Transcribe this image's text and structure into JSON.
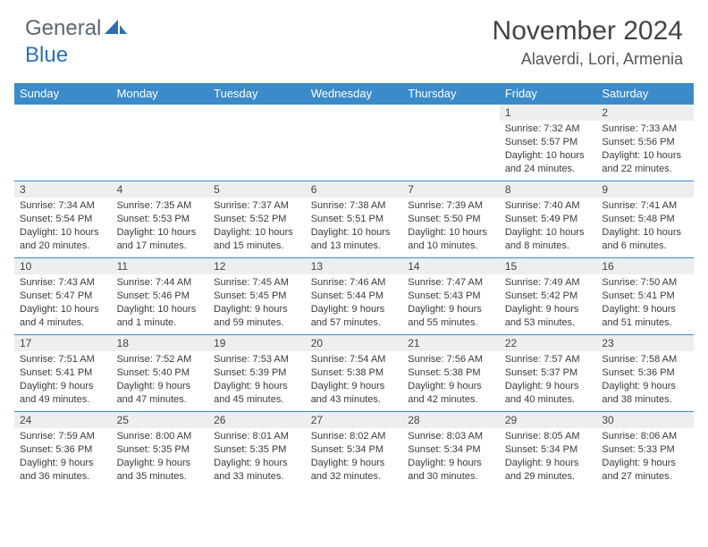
{
  "brand": {
    "part1": "General",
    "part2": "Blue"
  },
  "title": "November 2024",
  "location": "Alaverdi, Lori, Armenia",
  "columns": [
    "Sunday",
    "Monday",
    "Tuesday",
    "Wednesday",
    "Thursday",
    "Friday",
    "Saturday"
  ],
  "colors": {
    "header_bg": "#3b8bca",
    "header_text": "#ffffff",
    "daynum_bg": "#eceeef",
    "border": "#3b8bca",
    "body_text": "#3a3a3a",
    "logo_gray": "#5b6770",
    "logo_blue": "#2a6fb5"
  },
  "weeks": [
    [
      null,
      null,
      null,
      null,
      null,
      {
        "num": "1",
        "sunrise": "Sunrise: 7:32 AM",
        "sunset": "Sunset: 5:57 PM",
        "daylight": "Daylight: 10 hours and 24 minutes."
      },
      {
        "num": "2",
        "sunrise": "Sunrise: 7:33 AM",
        "sunset": "Sunset: 5:56 PM",
        "daylight": "Daylight: 10 hours and 22 minutes."
      }
    ],
    [
      {
        "num": "3",
        "sunrise": "Sunrise: 7:34 AM",
        "sunset": "Sunset: 5:54 PM",
        "daylight": "Daylight: 10 hours and 20 minutes."
      },
      {
        "num": "4",
        "sunrise": "Sunrise: 7:35 AM",
        "sunset": "Sunset: 5:53 PM",
        "daylight": "Daylight: 10 hours and 17 minutes."
      },
      {
        "num": "5",
        "sunrise": "Sunrise: 7:37 AM",
        "sunset": "Sunset: 5:52 PM",
        "daylight": "Daylight: 10 hours and 15 minutes."
      },
      {
        "num": "6",
        "sunrise": "Sunrise: 7:38 AM",
        "sunset": "Sunset: 5:51 PM",
        "daylight": "Daylight: 10 hours and 13 minutes."
      },
      {
        "num": "7",
        "sunrise": "Sunrise: 7:39 AM",
        "sunset": "Sunset: 5:50 PM",
        "daylight": "Daylight: 10 hours and 10 minutes."
      },
      {
        "num": "8",
        "sunrise": "Sunrise: 7:40 AM",
        "sunset": "Sunset: 5:49 PM",
        "daylight": "Daylight: 10 hours and 8 minutes."
      },
      {
        "num": "9",
        "sunrise": "Sunrise: 7:41 AM",
        "sunset": "Sunset: 5:48 PM",
        "daylight": "Daylight: 10 hours and 6 minutes."
      }
    ],
    [
      {
        "num": "10",
        "sunrise": "Sunrise: 7:43 AM",
        "sunset": "Sunset: 5:47 PM",
        "daylight": "Daylight: 10 hours and 4 minutes."
      },
      {
        "num": "11",
        "sunrise": "Sunrise: 7:44 AM",
        "sunset": "Sunset: 5:46 PM",
        "daylight": "Daylight: 10 hours and 1 minute."
      },
      {
        "num": "12",
        "sunrise": "Sunrise: 7:45 AM",
        "sunset": "Sunset: 5:45 PM",
        "daylight": "Daylight: 9 hours and 59 minutes."
      },
      {
        "num": "13",
        "sunrise": "Sunrise: 7:46 AM",
        "sunset": "Sunset: 5:44 PM",
        "daylight": "Daylight: 9 hours and 57 minutes."
      },
      {
        "num": "14",
        "sunrise": "Sunrise: 7:47 AM",
        "sunset": "Sunset: 5:43 PM",
        "daylight": "Daylight: 9 hours and 55 minutes."
      },
      {
        "num": "15",
        "sunrise": "Sunrise: 7:49 AM",
        "sunset": "Sunset: 5:42 PM",
        "daylight": "Daylight: 9 hours and 53 minutes."
      },
      {
        "num": "16",
        "sunrise": "Sunrise: 7:50 AM",
        "sunset": "Sunset: 5:41 PM",
        "daylight": "Daylight: 9 hours and 51 minutes."
      }
    ],
    [
      {
        "num": "17",
        "sunrise": "Sunrise: 7:51 AM",
        "sunset": "Sunset: 5:41 PM",
        "daylight": "Daylight: 9 hours and 49 minutes."
      },
      {
        "num": "18",
        "sunrise": "Sunrise: 7:52 AM",
        "sunset": "Sunset: 5:40 PM",
        "daylight": "Daylight: 9 hours and 47 minutes."
      },
      {
        "num": "19",
        "sunrise": "Sunrise: 7:53 AM",
        "sunset": "Sunset: 5:39 PM",
        "daylight": "Daylight: 9 hours and 45 minutes."
      },
      {
        "num": "20",
        "sunrise": "Sunrise: 7:54 AM",
        "sunset": "Sunset: 5:38 PM",
        "daylight": "Daylight: 9 hours and 43 minutes."
      },
      {
        "num": "21",
        "sunrise": "Sunrise: 7:56 AM",
        "sunset": "Sunset: 5:38 PM",
        "daylight": "Daylight: 9 hours and 42 minutes."
      },
      {
        "num": "22",
        "sunrise": "Sunrise: 7:57 AM",
        "sunset": "Sunset: 5:37 PM",
        "daylight": "Daylight: 9 hours and 40 minutes."
      },
      {
        "num": "23",
        "sunrise": "Sunrise: 7:58 AM",
        "sunset": "Sunset: 5:36 PM",
        "daylight": "Daylight: 9 hours and 38 minutes."
      }
    ],
    [
      {
        "num": "24",
        "sunrise": "Sunrise: 7:59 AM",
        "sunset": "Sunset: 5:36 PM",
        "daylight": "Daylight: 9 hours and 36 minutes."
      },
      {
        "num": "25",
        "sunrise": "Sunrise: 8:00 AM",
        "sunset": "Sunset: 5:35 PM",
        "daylight": "Daylight: 9 hours and 35 minutes."
      },
      {
        "num": "26",
        "sunrise": "Sunrise: 8:01 AM",
        "sunset": "Sunset: 5:35 PM",
        "daylight": "Daylight: 9 hours and 33 minutes."
      },
      {
        "num": "27",
        "sunrise": "Sunrise: 8:02 AM",
        "sunset": "Sunset: 5:34 PM",
        "daylight": "Daylight: 9 hours and 32 minutes."
      },
      {
        "num": "28",
        "sunrise": "Sunrise: 8:03 AM",
        "sunset": "Sunset: 5:34 PM",
        "daylight": "Daylight: 9 hours and 30 minutes."
      },
      {
        "num": "29",
        "sunrise": "Sunrise: 8:05 AM",
        "sunset": "Sunset: 5:34 PM",
        "daylight": "Daylight: 9 hours and 29 minutes."
      },
      {
        "num": "30",
        "sunrise": "Sunrise: 8:06 AM",
        "sunset": "Sunset: 5:33 PM",
        "daylight": "Daylight: 9 hours and 27 minutes."
      }
    ]
  ]
}
